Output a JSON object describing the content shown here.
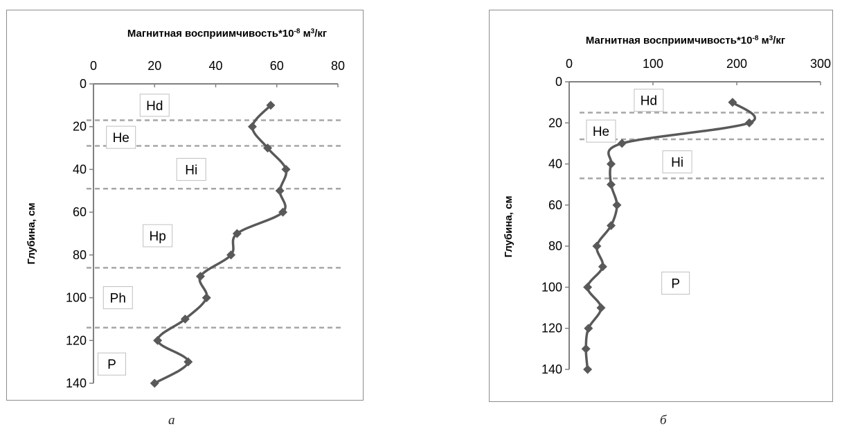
{
  "chart_data": [
    {
      "type": "line",
      "title": "Магнитная восприимчивость*10",
      "title_exp": "-8",
      "title_unit": "м",
      "title_unit_exp": "3",
      "title_unit_tail": "/кг",
      "ylabel": "Глубина, см",
      "caption": "а",
      "xlim": [
        0,
        80
      ],
      "ylim": [
        0,
        140
      ],
      "x_ticks": [
        "0",
        "20",
        "40",
        "60",
        "80"
      ],
      "y_ticks": [
        "0",
        "20",
        "40",
        "60",
        "80",
        "100",
        "120",
        "140"
      ],
      "series": [
        {
          "values": [
            {
              "x": 58,
              "y": 10
            },
            {
              "x": 52,
              "y": 20
            },
            {
              "x": 57,
              "y": 30
            },
            {
              "x": 63,
              "y": 40
            },
            {
              "x": 61,
              "y": 50
            },
            {
              "x": 62,
              "y": 60
            },
            {
              "x": 47,
              "y": 70
            },
            {
              "x": 45,
              "y": 80
            },
            {
              "x": 35,
              "y": 90
            },
            {
              "x": 37,
              "y": 100
            },
            {
              "x": 30,
              "y": 110
            },
            {
              "x": 21,
              "y": 120
            },
            {
              "x": 31,
              "y": 130
            },
            {
              "x": 20,
              "y": 140
            }
          ]
        }
      ],
      "boundaries": [
        17,
        29,
        49,
        86,
        114
      ],
      "horizons": [
        {
          "label": "Hd",
          "x": 20,
          "y": 10
        },
        {
          "label": "He",
          "x": 9,
          "y": 25
        },
        {
          "label": "Hi",
          "x": 32,
          "y": 40
        },
        {
          "label": "Hp",
          "x": 21,
          "y": 71
        },
        {
          "label": "Ph",
          "x": 8,
          "y": 100
        },
        {
          "label": "P",
          "x": 6,
          "y": 131
        }
      ],
      "grid": false,
      "legend": "none",
      "colors": {
        "line": "#595959",
        "marker": "#595959",
        "boundary": "#a6a6a6"
      }
    },
    {
      "type": "line",
      "title": "Магнитная восприимчивость*10",
      "title_exp": "-8",
      "title_unit": "м",
      "title_unit_exp": "3",
      "title_unit_tail": "/кг",
      "ylabel": "Глубина, см",
      "caption": "б",
      "xlim": [
        0,
        300
      ],
      "ylim": [
        0,
        140
      ],
      "x_ticks": [
        "0",
        "100",
        "200",
        "300"
      ],
      "y_ticks": [
        "0",
        "20",
        "40",
        "60",
        "80",
        "100",
        "120",
        "140"
      ],
      "series": [
        {
          "values": [
            {
              "x": 195,
              "y": 10
            },
            {
              "x": 215,
              "y": 20
            },
            {
              "x": 63,
              "y": 30
            },
            {
              "x": 50,
              "y": 40
            },
            {
              "x": 50,
              "y": 50
            },
            {
              "x": 57,
              "y": 60
            },
            {
              "x": 50,
              "y": 70
            },
            {
              "x": 33,
              "y": 80
            },
            {
              "x": 40,
              "y": 90
            },
            {
              "x": 22,
              "y": 100
            },
            {
              "x": 38,
              "y": 110
            },
            {
              "x": 23,
              "y": 120
            },
            {
              "x": 20,
              "y": 130
            },
            {
              "x": 22,
              "y": 140
            }
          ]
        }
      ],
      "boundaries": [
        15,
        28,
        47
      ],
      "horizons": [
        {
          "label": "Hd",
          "x": 95,
          "y": 9
        },
        {
          "label": "He",
          "x": 38,
          "y": 24
        },
        {
          "label": "Hi",
          "x": 129,
          "y": 39
        },
        {
          "label": "P",
          "x": 127,
          "y": 98
        }
      ],
      "grid": false,
      "legend": "none",
      "colors": {
        "line": "#595959",
        "marker": "#595959",
        "boundary": "#a6a6a6"
      }
    }
  ]
}
